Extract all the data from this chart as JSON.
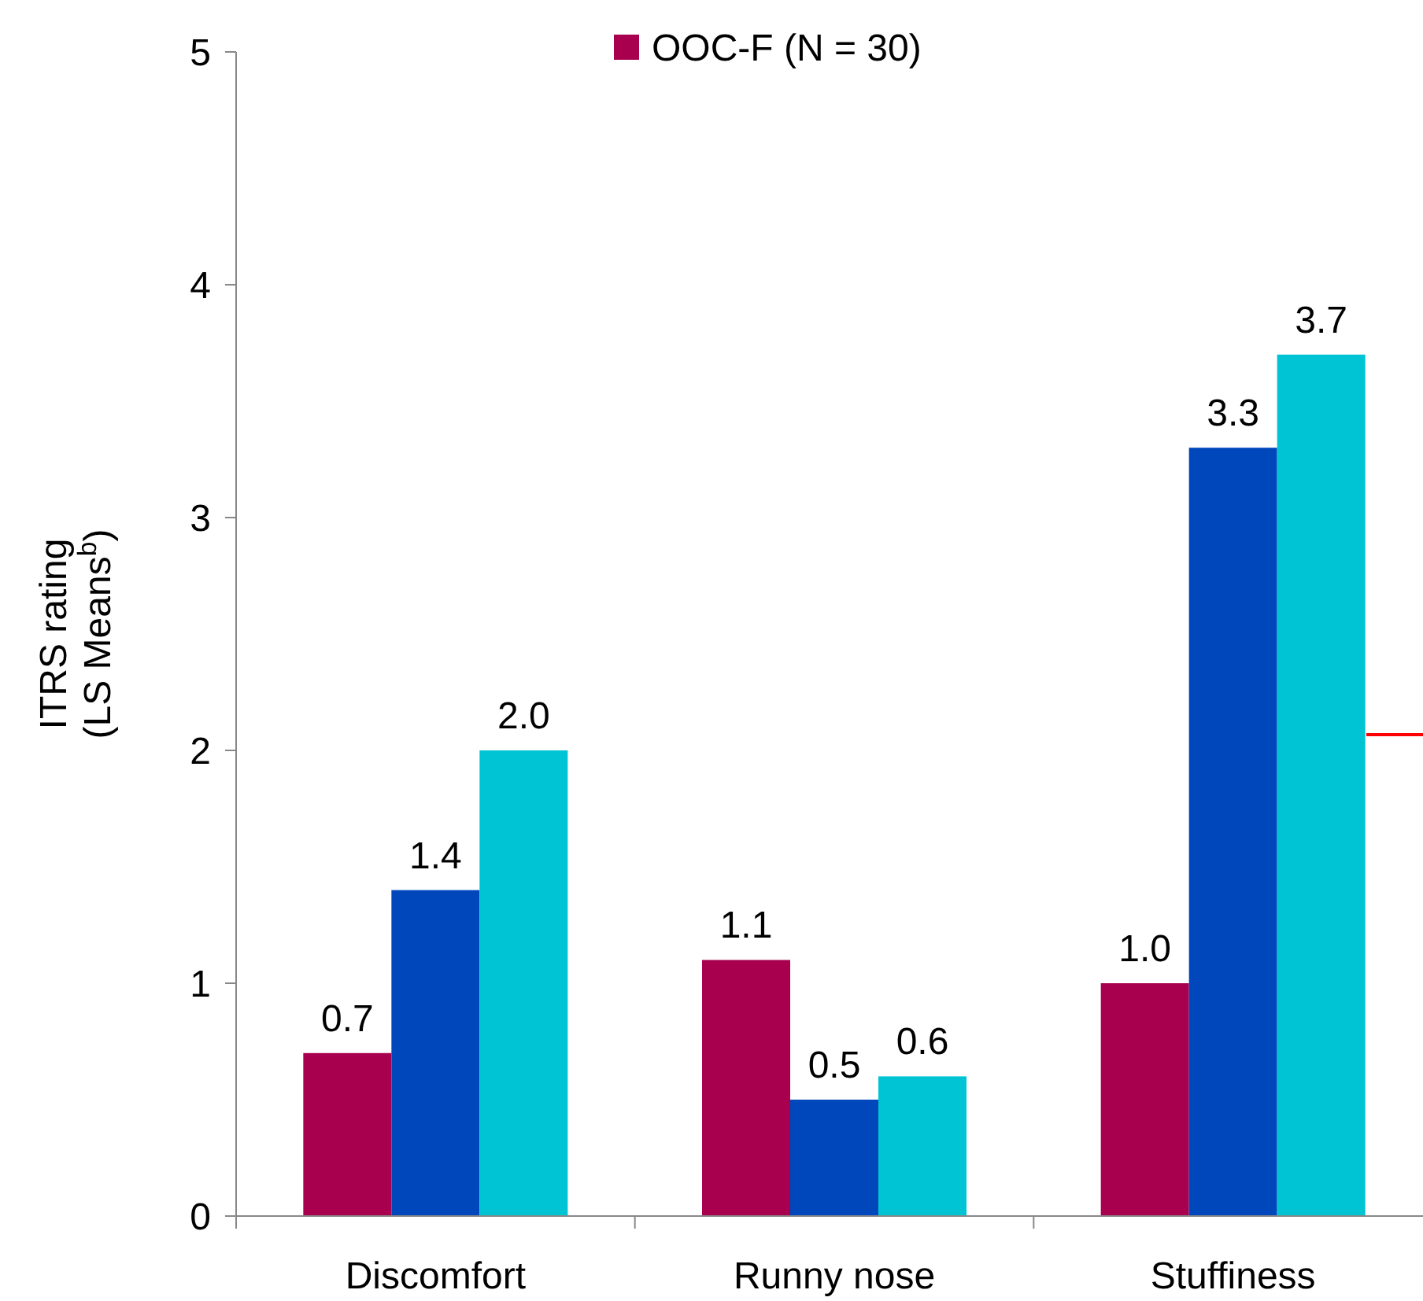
{
  "chart_data": {
    "type": "bar",
    "ylabel": "ITRS rating\n(LS Means$^{b}$)",
    "categories": [
      "Discomfort",
      "Runny nose",
      "Stuffiness"
    ],
    "series": [
      {
        "name": "OOC-F (N = 30)",
        "color": "#a8004f",
        "values": [
          0.7,
          1.1,
          1.0
        ],
        "value_labels": [
          "0.7",
          "1.1",
          "1.0"
        ]
      },
      {
        "color": "#0047bb",
        "values": [
          1.4,
          0.5,
          3.3
        ],
        "value_labels": [
          "1.4",
          "0.5",
          "3.3"
        ]
      },
      {
        "color": "#00c4d4",
        "values": [
          2.0,
          0.6,
          3.7
        ],
        "value_labels": [
          "2.0",
          "0.6",
          "3.7"
        ]
      }
    ],
    "ylim": [
      0,
      5
    ],
    "yticks": [
      0,
      1,
      2,
      3,
      4,
      5
    ],
    "legend": "top",
    "grid": false
  }
}
